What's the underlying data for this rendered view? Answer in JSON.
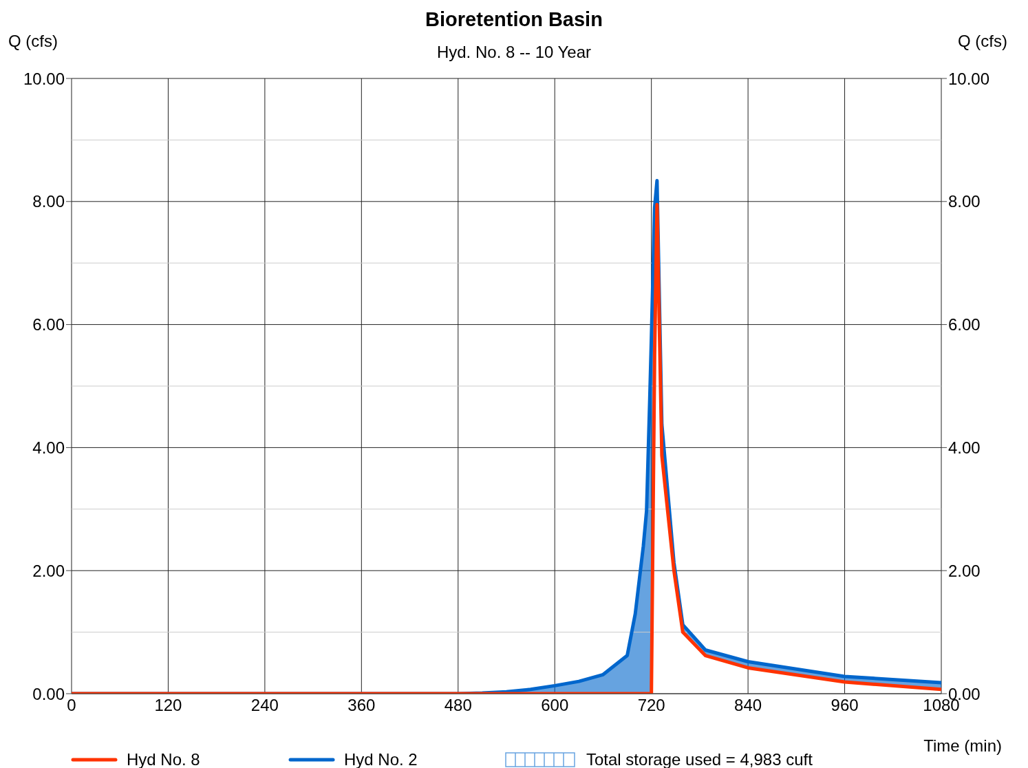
{
  "chart_data": {
    "type": "line",
    "title": "Bioretention Basin",
    "subtitle": "Hyd. No. 8 -- 10 Year",
    "xlabel": "Time (min)",
    "ylabel": "Q (cfs)",
    "y2label": "Q (cfs)",
    "annotations": [
      "Total storage used = 4,983 cuft"
    ],
    "x": [
      0,
      480,
      510,
      540,
      570,
      600,
      630,
      660,
      690,
      700,
      710,
      714,
      718,
      720,
      724,
      727,
      733,
      748,
      759,
      787,
      840,
      960,
      1080
    ],
    "series": [
      {
        "name": "Hyd No. 8",
        "type": "line",
        "color": "#ff3300",
        "values": [
          0,
          0,
          0,
          0,
          0,
          0,
          0,
          0,
          0,
          0,
          0,
          0,
          0,
          0,
          5.5,
          7.95,
          3.87,
          2.0,
          1.0,
          0.62,
          0.42,
          0.19,
          0.07
        ]
      },
      {
        "name": "Hyd No. 2",
        "type": "line",
        "color": "#0066cc",
        "values": [
          0,
          0,
          0.01,
          0.03,
          0.07,
          0.13,
          0.2,
          0.31,
          0.62,
          1.3,
          2.4,
          2.97,
          4.8,
          5.78,
          7.9,
          8.34,
          4.38,
          2.13,
          1.12,
          0.71,
          0.52,
          0.28,
          0.18
        ],
        "lower": [
          0,
          0,
          0,
          0,
          0,
          0,
          0,
          0,
          0,
          0,
          0,
          0,
          0,
          0,
          5.5,
          7.95,
          3.87,
          2.0,
          1.0,
          0.62,
          0.42,
          0.19,
          0.07
        ],
        "upper": [
          0,
          0,
          0.01,
          0.03,
          0.07,
          0.13,
          0.2,
          0.31,
          0.62,
          1.3,
          2.4,
          2.97,
          4.8,
          5.78,
          7.9,
          8.34,
          4.38,
          2.13,
          1.12,
          0.71,
          0.52,
          0.28,
          0.18
        ]
      }
    ],
    "xlim": [
      0,
      1080
    ],
    "xticks": [
      0,
      120,
      240,
      360,
      480,
      600,
      720,
      840,
      960,
      1080
    ],
    "ylim": [
      0,
      10
    ],
    "yticks": [
      {
        "value": 0,
        "label": "0.00"
      },
      {
        "value": 1,
        "label": null
      },
      {
        "value": 2,
        "label": "2.00"
      },
      {
        "value": 3,
        "label": null
      },
      {
        "value": 4,
        "label": "4.00"
      },
      {
        "value": 5,
        "label": null
      },
      {
        "value": 6,
        "label": "6.00"
      },
      {
        "value": 7,
        "label": null
      },
      {
        "value": 8,
        "label": "8.00"
      },
      {
        "value": 9,
        "label": null
      },
      {
        "value": 10,
        "label": "10.00"
      }
    ],
    "y2lim": [
      0,
      10
    ],
    "y2ticks": [
      {
        "value": 0,
        "label": "0.00"
      },
      {
        "value": 2,
        "label": "2.00"
      },
      {
        "value": 4,
        "label": "4.00"
      },
      {
        "value": 6,
        "label": "6.00"
      },
      {
        "value": 8,
        "label": "8.00"
      },
      {
        "value": 10,
        "label": "10.00"
      }
    ],
    "grid": true,
    "legend": "bottom",
    "marker": "none",
    "line_style": "solid"
  }
}
